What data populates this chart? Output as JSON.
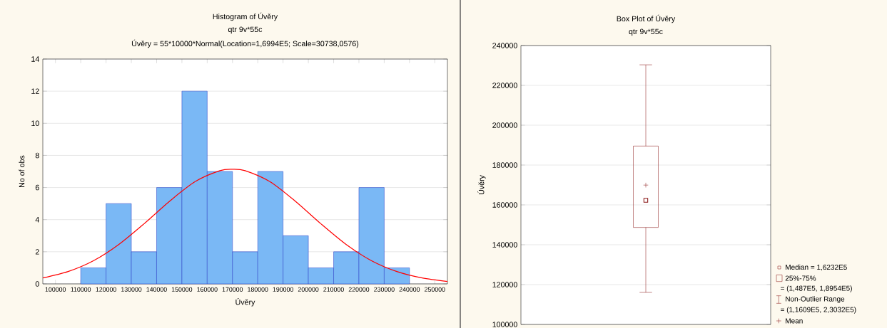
{
  "chart_data": [
    {
      "type": "histogram",
      "title": "Histogram of Úvěry",
      "subtitle": "qtr 9v*55c",
      "annotations": [
        "Úvěry = 55*10000*Normal(Location=1,6994E5; Scale=30738,0576)"
      ],
      "xlabel": "Úvěry",
      "ylabel": "No of obs",
      "bins": [
        110000,
        120000,
        130000,
        140000,
        150000,
        160000,
        170000,
        180000,
        190000,
        200000,
        210000,
        220000,
        230000,
        240000
      ],
      "values": [
        1,
        5,
        2,
        6,
        12,
        7,
        2,
        7,
        3,
        1,
        2,
        6,
        1
      ],
      "color": "#7ab8f5",
      "series": [
        {
          "type": "line",
          "color": "#ff0000",
          "x": [
            95000,
            105000,
            115000,
            125000,
            135000,
            145000,
            155000,
            165000,
            170000,
            175000,
            185000,
            195000,
            205000,
            215000,
            225000,
            235000,
            245000,
            255000
          ],
          "values": [
            0.37,
            0.77,
            1.44,
            2.45,
            3.74,
            5.13,
            6.35,
            7.05,
            7.14,
            7.05,
            6.35,
            5.13,
            3.74,
            2.45,
            1.44,
            0.77,
            0.37,
            0.15
          ]
        }
      ],
      "xlim": [
        95000,
        255000
      ],
      "xticks": [
        100000,
        110000,
        120000,
        130000,
        140000,
        150000,
        160000,
        170000,
        180000,
        190000,
        200000,
        210000,
        220000,
        230000,
        240000,
        250000
      ],
      "ylim": [
        0,
        14
      ],
      "yticks": [
        0,
        2,
        4,
        6,
        8,
        10,
        12,
        14
      ],
      "grid": "y"
    },
    {
      "type": "box",
      "title": "Box Plot of Úvěry",
      "subtitle": "qtr 9v*55c",
      "ylabel": "Úvěry",
      "categories": [
        null
      ],
      "color": "#8b1a1a",
      "boxes": [
        {
          "low": 116090,
          "q1": 148700,
          "median": 162320,
          "q3": 189540,
          "high": 230320,
          "mean": 169940
        }
      ],
      "ylim": [
        100000,
        240000
      ],
      "yticks": [
        100000,
        120000,
        140000,
        160000,
        180000,
        200000,
        220000,
        240000
      ],
      "grid": "y",
      "annotations": [
        "Median = 1,6232E5",
        "25%-75%",
        "= (1,487E5, 1,8954E5)",
        "Non-Outlier Range",
        "= (1,1609E5, 2,3032E5)",
        "Mean"
      ]
    }
  ]
}
